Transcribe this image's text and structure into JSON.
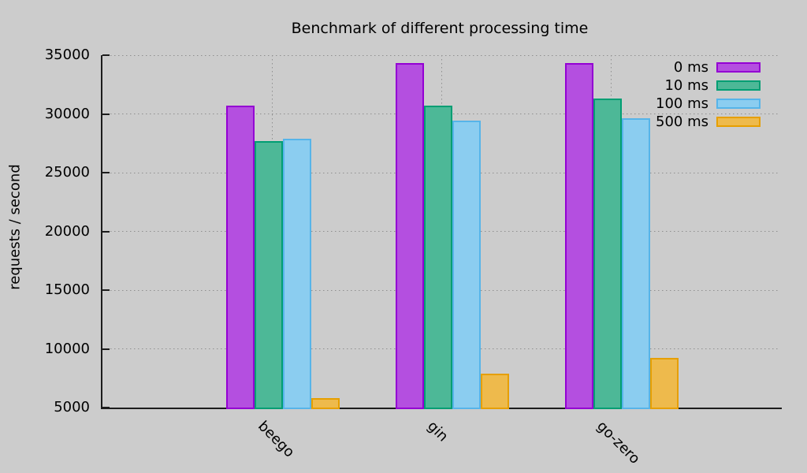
{
  "chart_data": {
    "type": "bar",
    "title": "Benchmark of different processing time",
    "xlabel": "",
    "ylabel": "requests / second",
    "categories": [
      "beego",
      "gin",
      "go-zero"
    ],
    "series": [
      {
        "name": "0 ms",
        "fill": "#b44fe0",
        "border": "#9400d3",
        "values": [
          30700,
          34350,
          34300
        ]
      },
      {
        "name": "10 ms",
        "fill": "#4db897",
        "border": "#009e73",
        "values": [
          27700,
          30700,
          31300
        ]
      },
      {
        "name": "100 ms",
        "fill": "#8bcdf0",
        "border": "#56b4e9",
        "values": [
          27900,
          29400,
          29650
        ]
      },
      {
        "name": "500 ms",
        "fill": "#eeba4c",
        "border": "#e69f00",
        "values": [
          5800,
          7900,
          9200
        ]
      }
    ],
    "ylim": [
      5000,
      35000
    ],
    "yticks": [
      5000,
      10000,
      15000,
      20000,
      25000,
      30000,
      35000
    ],
    "grid": true,
    "legend_position": "top-right",
    "colors": {
      "background": "#cccccc",
      "axis": "#1c1c1c",
      "grid": "#8f8f8f",
      "text": "#000000"
    }
  }
}
